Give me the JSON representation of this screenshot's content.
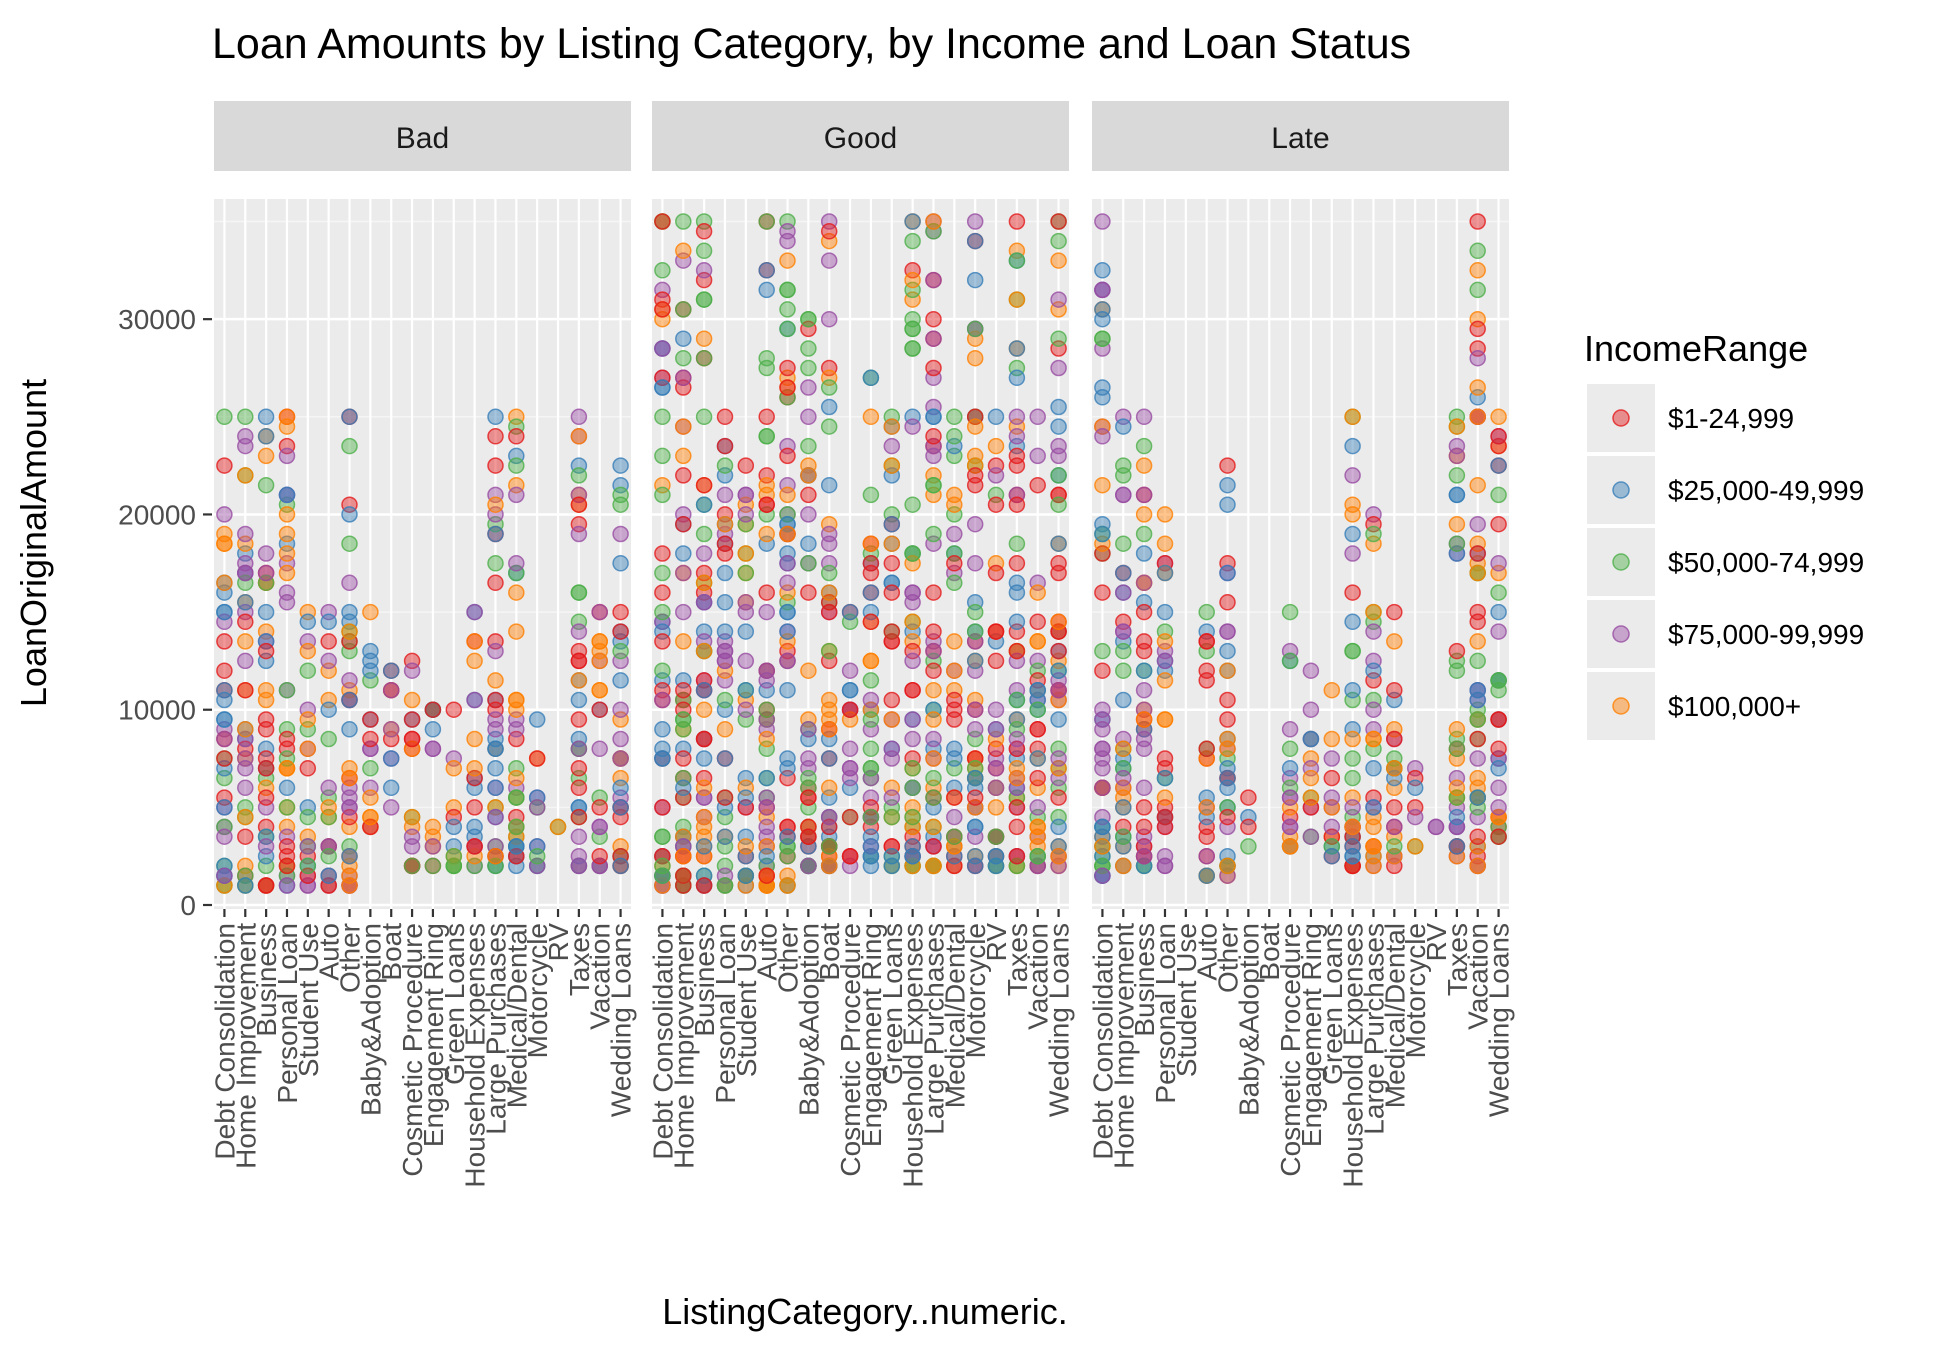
{
  "chart_data": {
    "type": "scatter",
    "title": "Loan Amounts by Listing Category, by Income and Loan Status",
    "xlabel": "ListingCategory..numeric.",
    "ylabel": "LoanOriginalAmount",
    "facets": [
      "Bad",
      "Good",
      "Late"
    ],
    "categories": [
      "Debt Consolidation",
      "Home Improvement",
      "Business",
      "Personal Loan",
      "Student Use",
      "Auto",
      "Other",
      "Baby&Adoption",
      "Boat",
      "Cosmetic Procedure",
      "Engagement Ring",
      "Green Loans",
      "Household Expenses",
      "Large Purchases",
      "Medical/Dental",
      "Motorcycle",
      "RV",
      "Taxes",
      "Vacation",
      "Wedding Loans"
    ],
    "category_positions": [
      1,
      2,
      3,
      4,
      5,
      6,
      7,
      8,
      9,
      10,
      11,
      12,
      13,
      14,
      15,
      16,
      17,
      18,
      19,
      20
    ],
    "category_label_positions": [
      1,
      2,
      3,
      4,
      5,
      6,
      7,
      8,
      9,
      10,
      11,
      12,
      13,
      14,
      15,
      16,
      17,
      18,
      19,
      20
    ],
    "xlim": [
      0.5,
      20.5
    ],
    "ylim": [
      0,
      36000
    ],
    "yticks": [
      0,
      10000,
      20000,
      30000
    ],
    "ytick_labels": [
      "0",
      "10000",
      "20000",
      "30000"
    ],
    "grid": true,
    "legend": {
      "title": "IncomeRange",
      "position": "right",
      "entries": [
        "$1-24,999",
        "$25,000-49,999",
        "$50,000-74,999",
        "$75,000-99,999",
        "$100,000+"
      ],
      "colors": [
        "#e41a1c",
        "#377eb8",
        "#4daf4a",
        "#984ea3",
        "#ff7f00"
      ]
    },
    "series_summary": [
      {
        "facet": "Bad",
        "category": "Debt Consolidation",
        "min": 1000,
        "max": 25000
      },
      {
        "facet": "Bad",
        "category": "Home Improvement",
        "min": 1000,
        "max": 25000
      },
      {
        "facet": "Bad",
        "category": "Business",
        "min": 1000,
        "max": 25000
      },
      {
        "facet": "Bad",
        "category": "Personal Loan",
        "min": 1000,
        "max": 25000
      },
      {
        "facet": "Bad",
        "category": "Student Use",
        "min": 1000,
        "max": 15000
      },
      {
        "facet": "Bad",
        "category": "Auto",
        "min": 1000,
        "max": 15000
      },
      {
        "facet": "Bad",
        "category": "Other",
        "min": 1000,
        "max": 25000
      },
      {
        "facet": "Bad",
        "category": "Baby&Adoption",
        "min": 4000,
        "max": 15000
      },
      {
        "facet": "Bad",
        "category": "Boat",
        "min": 5000,
        "max": 12000
      },
      {
        "facet": "Bad",
        "category": "Cosmetic Procedure",
        "min": 2000,
        "max": 12500
      },
      {
        "facet": "Bad",
        "category": "Engagement Ring",
        "min": 2000,
        "max": 10000
      },
      {
        "facet": "Bad",
        "category": "Green Loans",
        "min": 2000,
        "max": 10000
      },
      {
        "facet": "Bad",
        "category": "Household Expenses",
        "min": 2000,
        "max": 15000
      },
      {
        "facet": "Bad",
        "category": "Large Purchases",
        "min": 2000,
        "max": 25000
      },
      {
        "facet": "Bad",
        "category": "Medical/Dental",
        "min": 2000,
        "max": 25000
      },
      {
        "facet": "Bad",
        "category": "Motorcycle",
        "min": 2000,
        "max": 9500
      },
      {
        "facet": "Bad",
        "category": "RV",
        "min": 4000,
        "max": 4000
      },
      {
        "facet": "Bad",
        "category": "Taxes",
        "min": 2000,
        "max": 25000
      },
      {
        "facet": "Bad",
        "category": "Vacation",
        "min": 2000,
        "max": 15000
      },
      {
        "facet": "Bad",
        "category": "Wedding Loans",
        "min": 2000,
        "max": 22500
      },
      {
        "facet": "Good",
        "category": "Debt Consolidation",
        "min": 1000,
        "max": 35000
      },
      {
        "facet": "Good",
        "category": "Home Improvement",
        "min": 1000,
        "max": 35000
      },
      {
        "facet": "Good",
        "category": "Business",
        "min": 1000,
        "max": 35000
      },
      {
        "facet": "Good",
        "category": "Personal Loan",
        "min": 1000,
        "max": 25000
      },
      {
        "facet": "Good",
        "category": "Student Use",
        "min": 1000,
        "max": 22500
      },
      {
        "facet": "Good",
        "category": "Auto",
        "min": 1000,
        "max": 35000
      },
      {
        "facet": "Good",
        "category": "Other",
        "min": 1000,
        "max": 35000
      },
      {
        "facet": "Good",
        "category": "Baby&Adoption",
        "min": 2000,
        "max": 30000
      },
      {
        "facet": "Good",
        "category": "Boat",
        "min": 2000,
        "max": 35000
      },
      {
        "facet": "Good",
        "category": "Cosmetic Procedure",
        "min": 2000,
        "max": 15000
      },
      {
        "facet": "Good",
        "category": "Engagement Ring",
        "min": 2000,
        "max": 27000
      },
      {
        "facet": "Good",
        "category": "Green Loans",
        "min": 2000,
        "max": 25000
      },
      {
        "facet": "Good",
        "category": "Household Expenses",
        "min": 2000,
        "max": 35000
      },
      {
        "facet": "Good",
        "category": "Large Purchases",
        "min": 2000,
        "max": 35000
      },
      {
        "facet": "Good",
        "category": "Medical/Dental",
        "min": 2000,
        "max": 25000
      },
      {
        "facet": "Good",
        "category": "Motorcycle",
        "min": 2000,
        "max": 35000
      },
      {
        "facet": "Good",
        "category": "RV",
        "min": 2000,
        "max": 25000
      },
      {
        "facet": "Good",
        "category": "Taxes",
        "min": 2000,
        "max": 35000
      },
      {
        "facet": "Good",
        "category": "Vacation",
        "min": 2000,
        "max": 25000
      },
      {
        "facet": "Good",
        "category": "Wedding Loans",
        "min": 2000,
        "max": 35000
      },
      {
        "facet": "Late",
        "category": "Debt Consolidation",
        "min": 1500,
        "max": 35000
      },
      {
        "facet": "Late",
        "category": "Home Improvement",
        "min": 2000,
        "max": 25000
      },
      {
        "facet": "Late",
        "category": "Business",
        "min": 2000,
        "max": 25000
      },
      {
        "facet": "Late",
        "category": "Personal Loan",
        "min": 2000,
        "max": 20000
      },
      {
        "facet": "Late",
        "category": "Auto",
        "min": 1500,
        "max": 15000
      },
      {
        "facet": "Late",
        "category": "Other",
        "min": 1500,
        "max": 22500
      },
      {
        "facet": "Late",
        "category": "Baby&Adoption",
        "min": 3000,
        "max": 5500
      },
      {
        "facet": "Late",
        "category": "Cosmetic Procedure",
        "min": 2800,
        "max": 15000
      },
      {
        "facet": "Late",
        "category": "Engagement Ring",
        "min": 3500,
        "max": 12000
      },
      {
        "facet": "Late",
        "category": "Green Loans",
        "min": 2500,
        "max": 11000
      },
      {
        "facet": "Late",
        "category": "Household Expenses",
        "min": 2000,
        "max": 25000
      },
      {
        "facet": "Late",
        "category": "Large Purchases",
        "min": 2000,
        "max": 20000
      },
      {
        "facet": "Late",
        "category": "Medical/Dental",
        "min": 2000,
        "max": 15000
      },
      {
        "facet": "Late",
        "category": "Motorcycle",
        "min": 3000,
        "max": 7000
      },
      {
        "facet": "Late",
        "category": "RV",
        "min": 4000,
        "max": 4000
      },
      {
        "facet": "Late",
        "category": "Taxes",
        "min": 2500,
        "max": 25000
      },
      {
        "facet": "Late",
        "category": "Vacation",
        "min": 2000,
        "max": 35000
      },
      {
        "facet": "Late",
        "category": "Wedding Loans",
        "min": 3500,
        "max": 25000
      }
    ]
  }
}
